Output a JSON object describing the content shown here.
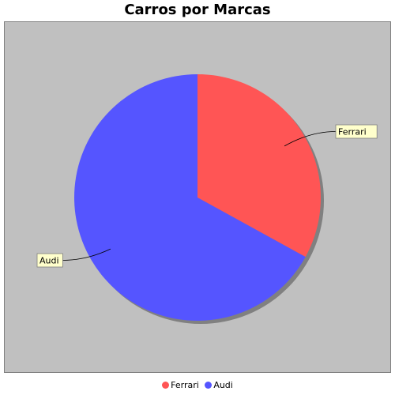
{
  "chart_data": {
    "type": "pie",
    "title": "Carros por Marcas",
    "categories": [
      "Ferrari",
      "Audi"
    ],
    "values": [
      33,
      67
    ],
    "colors": [
      "#ff5555",
      "#5555ff"
    ],
    "background": "#c0c0c0",
    "label_background": "#ffffcc",
    "legend_position": "bottom"
  }
}
